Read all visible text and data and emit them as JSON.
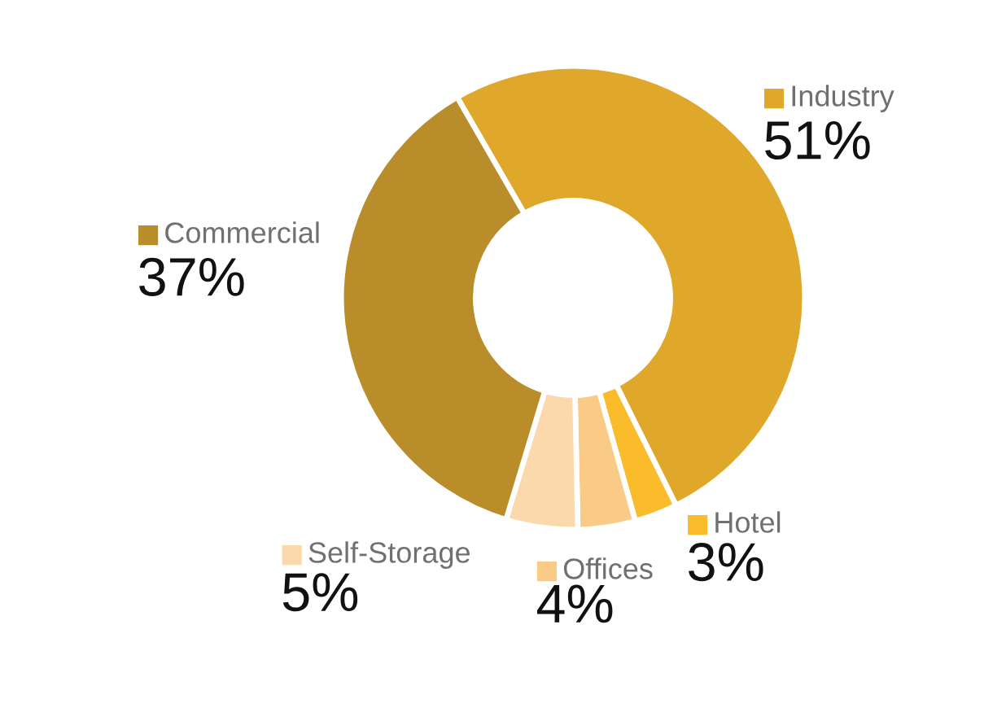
{
  "chart_data": {
    "type": "donut",
    "legend": "bottom left",
    "categories": [
      "Industry",
      "Hotel",
      "Offices",
      "Self-Storage",
      "Commercial"
    ],
    "values": [
      51,
      3,
      4,
      5,
      37
    ],
    "value_labels": [
      "51%",
      "3%",
      "4%",
      "5%",
      "37%"
    ],
    "colors": [
      "#dfa82a",
      "#fbbc2c",
      "#f9cb86",
      "#fbd9ad",
      "#b98d2a"
    ]
  }
}
